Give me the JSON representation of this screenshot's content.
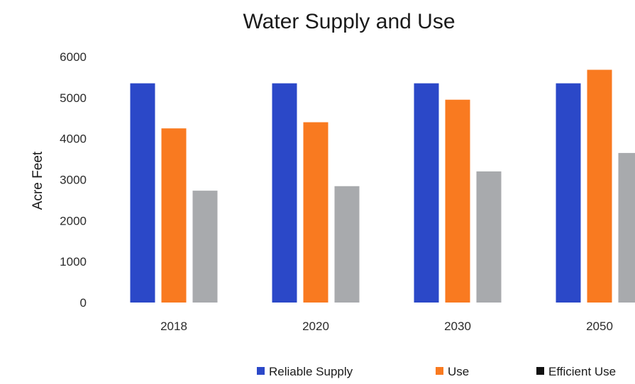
{
  "chart_data": {
    "type": "bar",
    "title": "Water Supply and Use",
    "xlabel": "",
    "ylabel": "Acre Feet",
    "categories": [
      "2018",
      "2020",
      "2030",
      "2050"
    ],
    "ylim": [
      0,
      6000
    ],
    "yticks": [
      0,
      1000,
      2000,
      3000,
      4000,
      5000,
      6000
    ],
    "grid": false,
    "legend_position": "bottom",
    "series": [
      {
        "name": "Reliable Supply",
        "color": "#2b48c8",
        "values": [
          5350,
          5350,
          5350,
          5350
        ]
      },
      {
        "name": "Use",
        "color": "#f97a20",
        "values": [
          4250,
          4400,
          4950,
          5680
        ]
      },
      {
        "name": "Efficient Use",
        "color": "#a8aaad",
        "values": [
          2730,
          2840,
          3200,
          3650
        ]
      }
    ],
    "legend_marker_colors": [
      "#2b48c8",
      "#f97a20",
      "#111111"
    ]
  }
}
